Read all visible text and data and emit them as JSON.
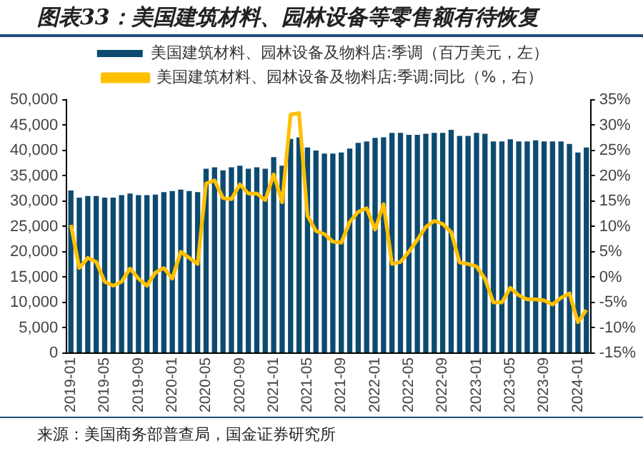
{
  "chart_data": {
    "type": "bar",
    "title": "图表33：美国建筑材料、园林设备等零售额有待恢复",
    "categories": [
      "2019-01",
      null,
      null,
      null,
      "2019-05",
      null,
      null,
      null,
      "2019-09",
      null,
      null,
      null,
      "2020-01",
      null,
      null,
      null,
      "2020-05",
      null,
      null,
      null,
      "2020-09",
      null,
      null,
      null,
      "2021-01",
      null,
      null,
      null,
      "2021-05",
      null,
      null,
      null,
      "2021-09",
      null,
      null,
      null,
      "2022-01",
      null,
      null,
      null,
      "2022-05",
      null,
      null,
      null,
      "2022-09",
      null,
      null,
      null,
      "2023-01",
      null,
      null,
      null,
      "2023-05",
      null,
      null,
      null,
      "2023-09",
      null,
      null,
      null,
      "2024-01",
      null
    ],
    "series": [
      {
        "name": "美国建筑材料、园林设备及物料店:季调（百万美元，左）",
        "color": "#0d4a70",
        "values": [
          32100,
          30700,
          31000,
          31000,
          30700,
          30700,
          31200,
          31500,
          31200,
          31200,
          31300,
          31800,
          32000,
          32300,
          32000,
          31800,
          36400,
          36700,
          36100,
          36700,
          37000,
          36400,
          36700,
          36400,
          38700,
          37000,
          42300,
          42600,
          40600,
          40000,
          39400,
          39400,
          39600,
          40400,
          41500,
          41800,
          42500,
          42600,
          43500,
          43500,
          43100,
          43100,
          43300,
          43500,
          43500,
          44100,
          42900,
          42900,
          43500,
          43300,
          41800,
          41800,
          42200,
          41800,
          41800,
          42000,
          41800,
          41800,
          41800,
          41300,
          39600,
          40600
        ]
      },
      {
        "name": "美国建筑材料、园林设备及物料店:季调:同比（%，右）",
        "type": "line",
        "axis": "y2",
        "color": "#ffc000",
        "values": [
          10.3,
          1.8,
          3.8,
          3.0,
          -0.9,
          -1.7,
          -0.9,
          1.7,
          -0.3,
          -1.7,
          0.9,
          1.8,
          -0.3,
          5.0,
          3.8,
          2.6,
          18.5,
          19.1,
          15.6,
          15.4,
          18.3,
          16.5,
          16.5,
          15.2,
          20.3,
          14.8,
          32.1,
          32.4,
          12.1,
          9.1,
          8.5,
          7.0,
          6.8,
          10.9,
          12.9,
          13.6,
          9.4,
          14.4,
          2.6,
          3.0,
          5.0,
          7.4,
          9.9,
          11.1,
          10.5,
          8.9,
          2.9,
          2.6,
          2.1,
          -0.3,
          -5.0,
          -5.0,
          -2.1,
          -3.6,
          -4.4,
          -4.4,
          -4.6,
          -5.4,
          -4.1,
          -3.2,
          -8.9,
          -6.5
        ]
      }
    ],
    "ylim": [
      0,
      50000
    ],
    "yticks": [
      {
        "value": 0,
        "label": "0"
      },
      {
        "value": 5000,
        "label": "5,000"
      },
      {
        "value": 10000,
        "label": "10,000"
      },
      {
        "value": 15000,
        "label": "15,000"
      },
      {
        "value": 20000,
        "label": "20,000"
      },
      {
        "value": 25000,
        "label": "25,000"
      },
      {
        "value": 30000,
        "label": "30,000"
      },
      {
        "value": 35000,
        "label": "35,000"
      },
      {
        "value": 40000,
        "label": "40,000"
      },
      {
        "value": 45000,
        "label": "45,000"
      },
      {
        "value": 50000,
        "label": "50,000"
      }
    ],
    "y2lim": [
      -15,
      35
    ],
    "y2ticks": [
      {
        "value": -15,
        "label": "-15%"
      },
      {
        "value": -10,
        "label": "-10%"
      },
      {
        "value": -5,
        "label": "-5%"
      },
      {
        "value": 0,
        "label": "0%"
      },
      {
        "value": 5,
        "label": "5%"
      },
      {
        "value": 10,
        "label": "10%"
      },
      {
        "value": 15,
        "label": "15%"
      },
      {
        "value": 20,
        "label": "20%"
      },
      {
        "value": 25,
        "label": "25%"
      },
      {
        "value": 30,
        "label": "30%"
      },
      {
        "value": 35,
        "label": "35%"
      }
    ],
    "grid": false,
    "legend": "top",
    "marker": "none",
    "line_style": "solid",
    "annotations": [
      "来源：美国商务部普查局，国金证券研究所"
    ]
  }
}
